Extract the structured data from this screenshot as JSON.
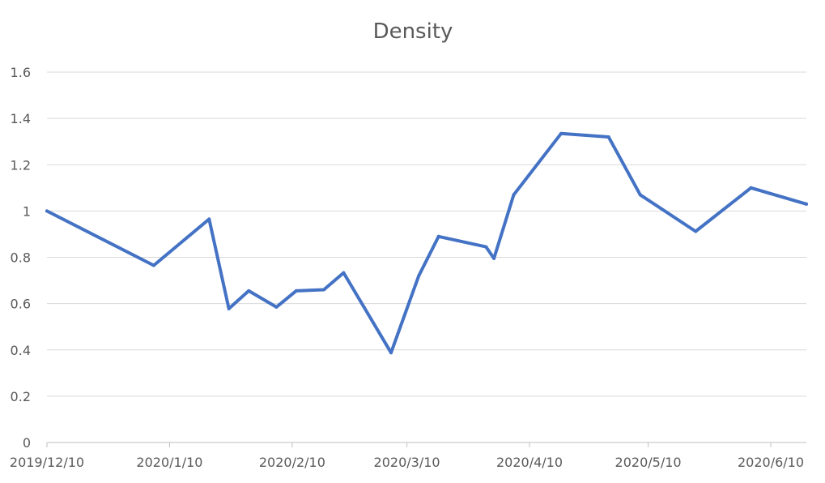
{
  "chart_data": {
    "type": "line",
    "title": "Density",
    "xlabel": "",
    "ylabel": "",
    "ylim": [
      0,
      1.6
    ],
    "yticks": [
      0,
      0.2,
      0.4,
      0.6,
      0.8,
      1,
      1.2,
      1.4,
      1.6
    ],
    "ytick_labels": [
      "0",
      "0.2",
      "0.4",
      "0.6",
      "0.8",
      "1",
      "1.2",
      "1.4",
      "1.6"
    ],
    "xlim": [
      "2019-12-10",
      "2020-06-19"
    ],
    "xticks": [
      "2019-12-10",
      "2020-01-10",
      "2020-02-10",
      "2020-03-10",
      "2020-04-10",
      "2020-05-10",
      "2020-06-10"
    ],
    "xtick_labels": [
      "2019/12/10",
      "2020/1/10",
      "2020/2/10",
      "2020/3/10",
      "2020/4/10",
      "2020/5/10",
      "2020/6/10"
    ],
    "grid": true,
    "legend": "none",
    "series": [
      {
        "color": "#4472c4",
        "points": [
          {
            "x": "2019-12-10",
            "y": 1.0
          },
          {
            "x": "2020-01-06",
            "y": 0.765
          },
          {
            "x": "2020-01-20",
            "y": 0.965
          },
          {
            "x": "2020-01-25",
            "y": 0.578
          },
          {
            "x": "2020-01-30",
            "y": 0.655
          },
          {
            "x": "2020-02-06",
            "y": 0.585
          },
          {
            "x": "2020-02-11",
            "y": 0.655
          },
          {
            "x": "2020-02-18",
            "y": 0.66
          },
          {
            "x": "2020-02-23",
            "y": 0.733
          },
          {
            "x": "2020-03-06",
            "y": 0.388
          },
          {
            "x": "2020-03-13",
            "y": 0.72
          },
          {
            "x": "2020-03-18",
            "y": 0.89
          },
          {
            "x": "2020-03-30",
            "y": 0.845
          },
          {
            "x": "2020-04-01",
            "y": 0.795
          },
          {
            "x": "2020-04-06",
            "y": 1.07
          },
          {
            "x": "2020-04-18",
            "y": 1.335
          },
          {
            "x": "2020-04-30",
            "y": 1.32
          },
          {
            "x": "2020-05-08",
            "y": 1.07
          },
          {
            "x": "2020-05-22",
            "y": 0.912
          },
          {
            "x": "2020-06-05",
            "y": 1.1
          },
          {
            "x": "2020-06-19",
            "y": 1.03
          }
        ]
      }
    ]
  }
}
